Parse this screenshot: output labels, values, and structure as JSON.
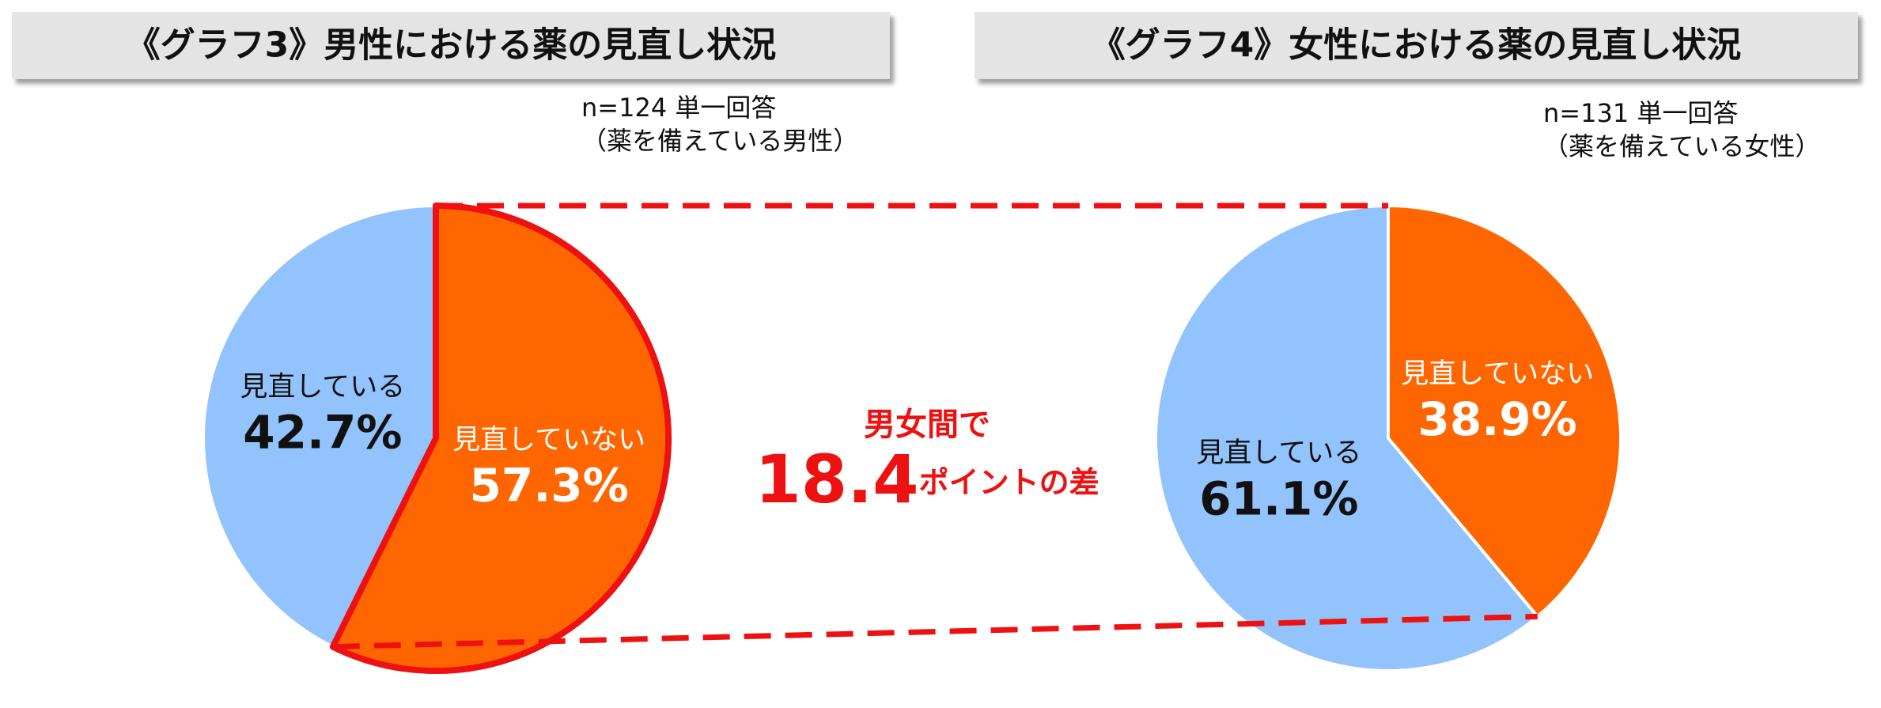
{
  "chart_data": [
    {
      "type": "pie",
      "title": "《グラフ3》男性における薬の見直し状況",
      "subtitle": [
        "n=124  単一回答",
        "（薬を備えている男性）"
      ],
      "categories": [
        "見直している",
        "見直していない"
      ],
      "values": [
        42.7,
        57.3
      ],
      "value_labels": [
        "42.7%",
        "57.3%"
      ],
      "colors": [
        "#93c3fc",
        "#ff6600"
      ],
      "highlight": 1
    },
    {
      "type": "pie",
      "title": "《グラフ4》女性における薬の見直し状況",
      "subtitle": [
        "n=131  単一回答",
        "（薬を備えている女性）"
      ],
      "categories": [
        "見直している",
        "見直していない"
      ],
      "values": [
        61.1,
        38.9
      ],
      "value_labels": [
        "61.1%",
        "38.9%"
      ],
      "colors": [
        "#93c3fc",
        "#ff6600"
      ]
    }
  ],
  "comparison": {
    "line1": "男女間で",
    "value": 18.4,
    "suffix": "ポイントの差",
    "color": "#ee1111"
  }
}
